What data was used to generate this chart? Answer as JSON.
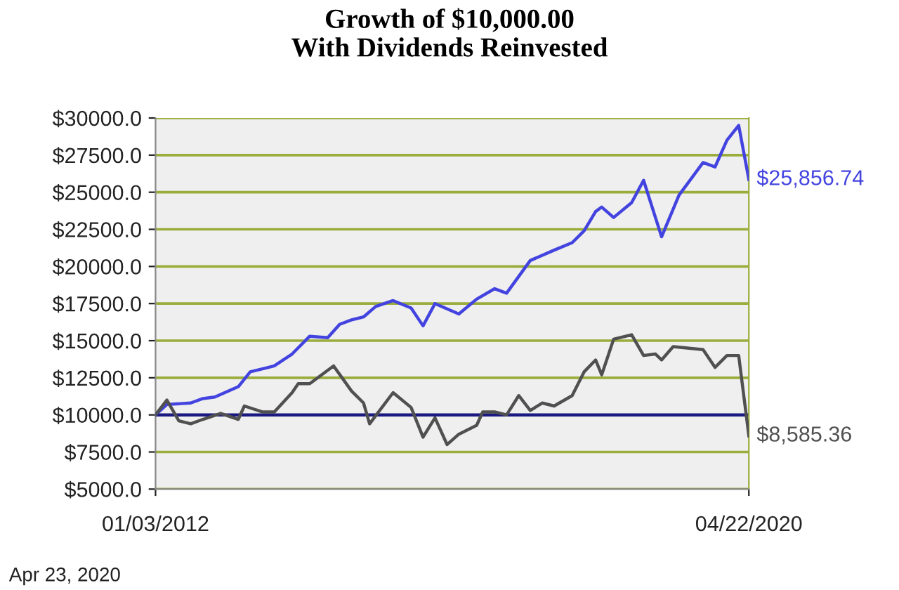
{
  "chart_data": {
    "type": "line",
    "title": "Growth of $10,000.00\nWith Dividends Reinvested",
    "series": [
      {
        "color": "#4343e0",
        "x": [
          "2012-01-03",
          "2012-03",
          "2012-07",
          "2012-09",
          "2012-11",
          "2013-03",
          "2013-05",
          "2013-08",
          "2013-09",
          "2013-12",
          "2014-03",
          "2014-06",
          "2014-08",
          "2014-10",
          "2014-12",
          "2015-02",
          "2015-05",
          "2015-08",
          "2015-10",
          "2015-12",
          "2016-04",
          "2016-07",
          "2016-10",
          "2016-12",
          "2017-04",
          "2017-08",
          "2017-11",
          "2018-01",
          "2018-03",
          "2018-04",
          "2018-06",
          "2018-09",
          "2018-11",
          "2019-02",
          "2019-05",
          "2019-09",
          "2019-11",
          "2020-01",
          "2020-03",
          "2020-04-22"
        ],
        "values": [
          10000,
          10700,
          10800,
          11100,
          11200,
          11900,
          12900,
          13200,
          13300,
          14100,
          15300,
          15200,
          16100,
          16400,
          16600,
          17300,
          17700,
          17200,
          16000,
          17500,
          16800,
          17800,
          18500,
          18200,
          20400,
          21100,
          21600,
          22400,
          23700,
          24000,
          23300,
          24300,
          25800,
          22000,
          24800,
          27000,
          26700,
          28500,
          29500,
          25856.74
        ],
        "value_labels": [
          null,
          null,
          null,
          null,
          null,
          null,
          null,
          null,
          null,
          null,
          null,
          null,
          null,
          null,
          null,
          null,
          null,
          null,
          null,
          null,
          null,
          null,
          null,
          null,
          null,
          null,
          null,
          null,
          null,
          null,
          null,
          null,
          null,
          null,
          null,
          null,
          null,
          null,
          null,
          "$25,856.74"
        ]
      },
      {
        "color": "#505050",
        "x": [
          "2012-01-03",
          "2012-03",
          "2012-05",
          "2012-07",
          "2012-09",
          "2012-12",
          "2013-03",
          "2013-04",
          "2013-07",
          "2013-09",
          "2013-12",
          "2014-01",
          "2014-03",
          "2014-07",
          "2014-10",
          "2014-12",
          "2015-01",
          "2015-05",
          "2015-08",
          "2015-10",
          "2015-12",
          "2016-02",
          "2016-04",
          "2016-07",
          "2016-08",
          "2016-10",
          "2016-12",
          "2017-02",
          "2017-04",
          "2017-06",
          "2017-08",
          "2017-11",
          "2018-01",
          "2018-03",
          "2018-04",
          "2018-06",
          "2018-09",
          "2018-11",
          "2019-01",
          "2019-02",
          "2019-04",
          "2019-09",
          "2019-11",
          "2020-01",
          "2020-03",
          "2020-04-22"
        ],
        "values": [
          10000,
          11000,
          9600,
          9400,
          9700,
          10100,
          9700,
          10600,
          10200,
          10200,
          11500,
          12100,
          12100,
          13300,
          11600,
          10800,
          9400,
          11500,
          10500,
          8500,
          9800,
          8000,
          8700,
          9300,
          10200,
          10200,
          10000,
          11300,
          10300,
          10800,
          10600,
          11300,
          12900,
          13700,
          12700,
          15100,
          15400,
          14000,
          14100,
          13700,
          14600,
          14400,
          13200,
          14000,
          14000,
          8585.36
        ],
        "value_labels": [
          null,
          null,
          null,
          null,
          null,
          null,
          null,
          null,
          null,
          null,
          null,
          null,
          null,
          null,
          null,
          null,
          null,
          null,
          null,
          null,
          null,
          null,
          null,
          null,
          null,
          null,
          null,
          null,
          null,
          null,
          null,
          null,
          null,
          null,
          null,
          null,
          null,
          null,
          null,
          null,
          null,
          null,
          null,
          null,
          null,
          "$8,585.36"
        ]
      }
    ],
    "xlim": [
      "2012-01-03",
      "2020-04-22"
    ],
    "xticks": [
      {
        "value": "2012-01-03",
        "label": "01/03/2012"
      },
      {
        "value": "2020-04-22",
        "label": "04/22/2020"
      }
    ],
    "ylim": [
      5000,
      30000
    ],
    "yticks": [
      {
        "value": 5000,
        "label": "$5000.0"
      },
      {
        "value": 7500,
        "label": "$7500.0"
      },
      {
        "value": 10000,
        "label": "$10000.0"
      },
      {
        "value": 12500,
        "label": "$12500.0"
      },
      {
        "value": 15000,
        "label": "$15000.0"
      },
      {
        "value": 17500,
        "label": "$17500.0"
      },
      {
        "value": 20000,
        "label": "$20000.0"
      },
      {
        "value": 22500,
        "label": "$22500.0"
      },
      {
        "value": 25000,
        "label": "$25000.0"
      },
      {
        "value": 27500,
        "label": "$27500.0"
      },
      {
        "value": 30000,
        "label": "$30000.0"
      }
    ],
    "ref_lines": [
      {
        "axis": "y",
        "value": 10000,
        "color": "#1a1a80"
      }
    ],
    "grid": "y",
    "annotations": [
      "Apr 23, 2020"
    ]
  }
}
